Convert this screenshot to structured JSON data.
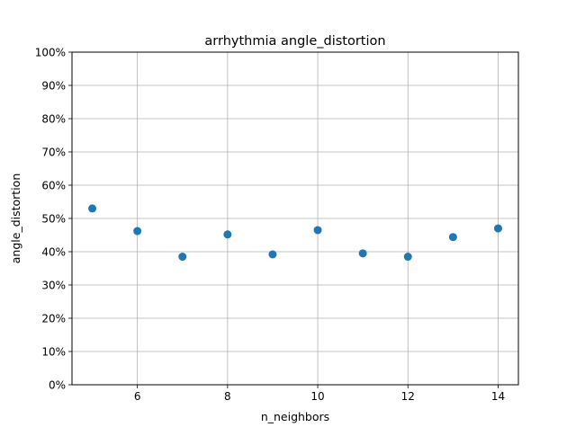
{
  "chart_data": {
    "type": "scatter",
    "title": "arrhythmia angle_distortion",
    "xlabel": "n_neighbors",
    "ylabel": "angle_distortion",
    "xlim": [
      4.55,
      14.45
    ],
    "ylim": [
      0,
      1
    ],
    "x_ticks": [
      6,
      8,
      10,
      12,
      14
    ],
    "x_tick_labels": [
      "6",
      "8",
      "10",
      "12",
      "14"
    ],
    "y_ticks": [
      0,
      0.1,
      0.2,
      0.3,
      0.4,
      0.5,
      0.6,
      0.7,
      0.8,
      0.9,
      1.0
    ],
    "y_tick_labels": [
      "0%",
      "10%",
      "20%",
      "30%",
      "40%",
      "50%",
      "60%",
      "70%",
      "80%",
      "90%",
      "100%"
    ],
    "grid": true,
    "marker_color": "#1f77b4",
    "series": [
      {
        "x": [
          5,
          6,
          7,
          8,
          9,
          10,
          11,
          12,
          13,
          14
        ],
        "y": [
          0.53,
          0.462,
          0.385,
          0.452,
          0.392,
          0.465,
          0.395,
          0.385,
          0.444,
          0.47
        ]
      }
    ]
  }
}
